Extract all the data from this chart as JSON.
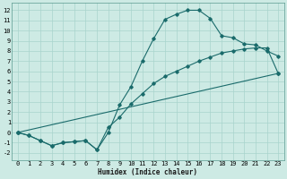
{
  "xlabel": "Humidex (Indice chaleur)",
  "xlim": [
    -0.5,
    23.5
  ],
  "ylim": [
    -2.7,
    12.7
  ],
  "xticks": [
    0,
    1,
    2,
    3,
    4,
    5,
    6,
    7,
    8,
    9,
    10,
    11,
    12,
    13,
    14,
    15,
    16,
    17,
    18,
    19,
    20,
    21,
    22,
    23
  ],
  "yticks": [
    -2,
    -1,
    0,
    1,
    2,
    3,
    4,
    5,
    6,
    7,
    8,
    9,
    10,
    11,
    12
  ],
  "bg_color": "#cdeae4",
  "grid_color": "#a8d4cc",
  "line_color": "#1a6b6b",
  "line1_x": [
    0,
    1,
    2,
    3,
    4,
    5,
    6,
    7,
    8,
    9,
    10,
    11,
    12,
    13,
    14,
    15,
    16,
    17,
    18,
    19,
    20,
    21,
    22,
    23
  ],
  "line1_y": [
    0.0,
    -0.3,
    -0.8,
    -1.3,
    -1.0,
    -0.9,
    -0.8,
    -1.7,
    0.0,
    2.7,
    4.5,
    7.0,
    9.2,
    11.1,
    11.6,
    12.0,
    12.0,
    11.2,
    9.5,
    9.3,
    8.7,
    8.6,
    8.0,
    7.5
  ],
  "line2_x": [
    0,
    1,
    2,
    3,
    4,
    5,
    6,
    7,
    8,
    9,
    10,
    11,
    12,
    13,
    14,
    15,
    16,
    17,
    18,
    19,
    20,
    21,
    22,
    23
  ],
  "line2_y": [
    0.0,
    -0.3,
    -0.8,
    -1.3,
    -1.0,
    -0.9,
    -0.8,
    -1.7,
    0.5,
    1.5,
    2.8,
    3.8,
    4.8,
    5.5,
    6.0,
    6.5,
    7.0,
    7.4,
    7.8,
    8.0,
    8.2,
    8.3,
    8.3,
    5.8
  ],
  "line3_x": [
    0,
    23
  ],
  "line3_y": [
    0.0,
    5.8
  ],
  "markersize": 1.8,
  "linewidth": 0.8,
  "tick_fontsize": 5.0,
  "xlabel_fontsize": 5.5
}
